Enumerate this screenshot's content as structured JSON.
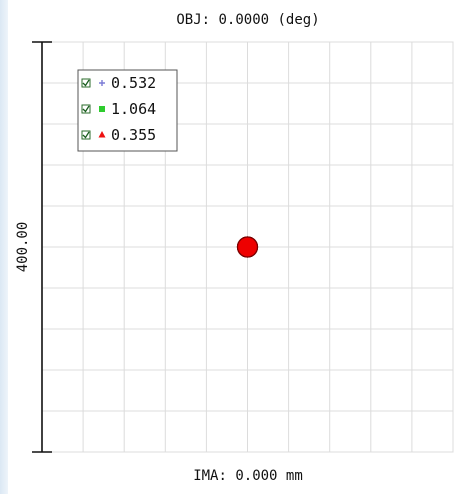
{
  "chart_data": {
    "type": "scatter",
    "title": "OBJ: 0.0000 (deg)",
    "xlabel": "IMA: 0.000 mm",
    "ylabel": "400.00",
    "grid": true,
    "grid_divisions": [
      10,
      10
    ],
    "xlim": [
      -200,
      200
    ],
    "ylim": [
      -200,
      200
    ],
    "legend_position": "top-left",
    "series": [
      {
        "name": "0.532",
        "color": "#7b7bd6",
        "marker": "plus",
        "x": [
          0
        ],
        "y": [
          0
        ]
      },
      {
        "name": "1.064",
        "color": "#2ecc2e",
        "marker": "square",
        "x": [
          0
        ],
        "y": [
          0
        ]
      },
      {
        "name": "0.355",
        "color": "#ee1111",
        "marker": "triangle",
        "x": [
          0
        ],
        "y": [
          0
        ]
      }
    ],
    "spot_color": "#ee0000"
  }
}
